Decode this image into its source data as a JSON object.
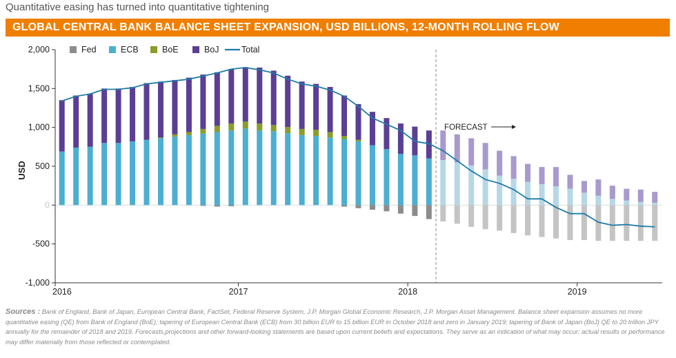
{
  "header": {
    "subtitle": "Quantitative easing has turned into quantitative tightening",
    "title": "GLOBAL CENTRAL BANK BALANCE SHEET EXPANSION, USD BILLIONS, 12-MONTH ROLLING FLOW"
  },
  "chart_data": {
    "type": "bar",
    "stacked": true,
    "ylabel": "USD",
    "ylim": [
      -1000,
      2000
    ],
    "yticks": [
      -1000,
      -500,
      0,
      500,
      1000,
      1500,
      2000
    ],
    "ytick_labels": [
      "-1,000",
      "-500",
      "0",
      "500",
      "1,000",
      "1,500",
      "2,000"
    ],
    "xtick_labels": [
      "2016",
      "2017",
      "2018",
      "2019"
    ],
    "annotation": "FORECAST",
    "forecast_start_index": 27,
    "legend": [
      "Fed",
      "ECB",
      "BoE",
      "BoJ",
      "Total"
    ],
    "legend_placement": "top-left",
    "colors": {
      "Fed": "#8c8c8c",
      "ECB": "#4bafd1",
      "BoE": "#8a9c2a",
      "BoJ": "#5a3f94",
      "Total": "#1f7ba8",
      "Fed_forecast": "#c4c4c4",
      "ECB_forecast": "#b6d8e6",
      "BoE_forecast": "#cfd6a0",
      "BoJ_forecast": "#a899cf"
    },
    "series": [
      {
        "name": "Fed",
        "values": [
          0,
          0,
          0,
          0,
          0,
          0,
          0,
          0,
          0,
          0,
          -10,
          -20,
          -15,
          0,
          0,
          0,
          0,
          0,
          0,
          0,
          -20,
          -40,
          -60,
          -80,
          -110,
          -140,
          -180,
          -210,
          -240,
          -280,
          -310,
          -330,
          -360,
          -390,
          -410,
          -430,
          -450,
          -450,
          -460,
          -460,
          -460,
          -460,
          -460
        ]
      },
      {
        "name": "ECB",
        "values": [
          690,
          740,
          750,
          800,
          800,
          820,
          840,
          860,
          880,
          900,
          920,
          940,
          960,
          985,
          960,
          950,
          925,
          900,
          890,
          870,
          850,
          820,
          770,
          720,
          660,
          640,
          600,
          580,
          550,
          510,
          460,
          380,
          340,
          300,
          270,
          240,
          210,
          160,
          120,
          80,
          60,
          40,
          30
        ]
      },
      {
        "name": "BoE",
        "values": [
          0,
          0,
          0,
          0,
          0,
          0,
          0,
          10,
          30,
          40,
          60,
          80,
          90,
          90,
          90,
          80,
          80,
          80,
          80,
          70,
          40,
          20,
          0,
          0,
          0,
          0,
          0,
          0,
          0,
          0,
          0,
          0,
          0,
          0,
          0,
          0,
          0,
          0,
          0,
          0,
          0,
          0,
          0
        ]
      },
      {
        "name": "BoJ",
        "values": [
          660,
          670,
          680,
          700,
          700,
          700,
          730,
          720,
          700,
          700,
          700,
          690,
          700,
          700,
          720,
          700,
          660,
          610,
          590,
          580,
          520,
          460,
          430,
          400,
          390,
          370,
          360,
          380,
          360,
          350,
          340,
          320,
          290,
          230,
          220,
          250,
          180,
          150,
          210,
          170,
          150,
          160,
          140
        ]
      },
      {
        "name": "Total",
        "values": [
          1340,
          1400,
          1430,
          1490,
          1490,
          1510,
          1560,
          1580,
          1600,
          1620,
          1660,
          1700,
          1750,
          1770,
          1740,
          1700,
          1620,
          1560,
          1530,
          1480,
          1400,
          1270,
          1120,
          1040,
          960,
          820,
          790,
          700,
          570,
          440,
          330,
          280,
          200,
          80,
          80,
          -30,
          -110,
          -110,
          -220,
          -260,
          -250,
          -270,
          -280
        ]
      }
    ]
  },
  "footer": {
    "sources_label": "Sources :",
    "sources_text": "Bank of England, Bank of Japan, European Central Bank, FactSet, Federal Reserve System, J.P. Morgan Global Economic Research, J.P. Morgan Asset Management. Balance sheet expansion assumes no more quantitative easing (QE) from Bank of England (BoE); tapering of European Central Bank (ECB) from 30 billion EUR to 15 billion EUR in October 2018 and zero in January 2019; tapering of Bank of Japan (BoJ) QE to 20 trillion JPY annually for the remainder of 2018 and 2019. Forecasts,projections and other forward-looking statements are based upon current beliefs and expectations. They serve as an indication of what may occur; actual results or performance may differ materially from those reflected or contemplated."
  }
}
